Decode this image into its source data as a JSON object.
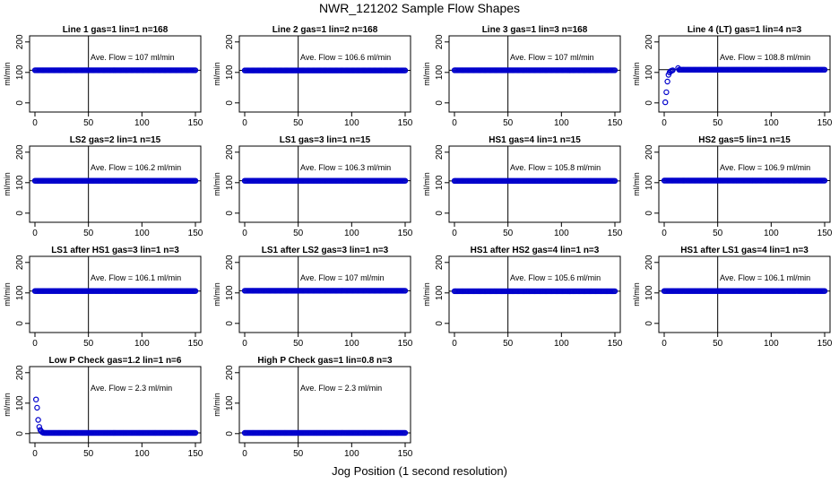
{
  "figure": {
    "title": "NWR_121202  Sample Flow Shapes",
    "xlabel": "Jog Position (1 second resolution)",
    "colors": {
      "points": "#0000cc",
      "axis": "#000000",
      "reference_line": "#000000"
    }
  },
  "chart_data": [
    {
      "type": "scatter",
      "title": "Line 1 gas=1 lin=1 n=168",
      "ylabel": "ml/min",
      "annotation": "Ave. Flow =  107  ml/min",
      "xlim": [
        0,
        150
      ],
      "ylim": [
        -30,
        220
      ],
      "xticks": [
        0,
        50,
        100,
        150
      ],
      "yticks": [
        0,
        100,
        200
      ],
      "hline": 107,
      "vline": 50,
      "shape": "flat",
      "level": 107,
      "x_range": [
        0,
        150
      ]
    },
    {
      "type": "scatter",
      "title": "Line 2 gas=1 lin=2 n=168",
      "ylabel": "ml/min",
      "annotation": "Ave. Flow =  106.6  ml/min",
      "xlim": [
        0,
        150
      ],
      "ylim": [
        -30,
        220
      ],
      "xticks": [
        0,
        50,
        100,
        150
      ],
      "yticks": [
        0,
        100,
        200
      ],
      "hline": 106.6,
      "vline": 50,
      "shape": "flat",
      "level": 106.6,
      "x_range": [
        0,
        150
      ]
    },
    {
      "type": "scatter",
      "title": "Line 3 gas=1 lin=3 n=168",
      "ylabel": "ml/min",
      "annotation": "Ave. Flow =  107  ml/min",
      "xlim": [
        0,
        150
      ],
      "ylim": [
        -30,
        220
      ],
      "xticks": [
        0,
        50,
        100,
        150
      ],
      "yticks": [
        0,
        100,
        200
      ],
      "hline": 107,
      "vline": 50,
      "shape": "flat",
      "level": 107,
      "x_range": [
        0,
        150
      ]
    },
    {
      "type": "scatter",
      "title": "Line 4 (LT) gas=1 lin=4 n=3",
      "ylabel": "ml/min",
      "annotation": "Ave. Flow =  108.8  ml/min",
      "xlim": [
        0,
        150
      ],
      "ylim": [
        -30,
        220
      ],
      "xticks": [
        0,
        50,
        100,
        150
      ],
      "yticks": [
        0,
        100,
        200
      ],
      "hline": 108.8,
      "vline": 50,
      "shape": "rise",
      "level": 108.8,
      "x_range": [
        0,
        150
      ],
      "start_points": [
        {
          "x": 1,
          "y": 2
        },
        {
          "x": 2,
          "y": 35
        },
        {
          "x": 3,
          "y": 70
        },
        {
          "x": 4,
          "y": 92
        },
        {
          "x": 5,
          "y": 100
        },
        {
          "x": 6,
          "y": 104
        },
        {
          "x": 7,
          "y": 106
        },
        {
          "x": 8,
          "y": 107
        },
        {
          "x": 13,
          "y": 114
        }
      ]
    },
    {
      "type": "scatter",
      "title": "LS2 gas=2 lin=1 n=15",
      "ylabel": "ml/min",
      "annotation": "Ave. Flow =  106.2  ml/min",
      "xlim": [
        0,
        150
      ],
      "ylim": [
        -30,
        220
      ],
      "xticks": [
        0,
        50,
        100,
        150
      ],
      "yticks": [
        0,
        100,
        200
      ],
      "hline": 106.2,
      "vline": 50,
      "shape": "flat",
      "level": 106.2,
      "x_range": [
        0,
        150
      ]
    },
    {
      "type": "scatter",
      "title": "LS1 gas=3 lin=1 n=15",
      "ylabel": "ml/min",
      "annotation": "Ave. Flow =  106.3  ml/min",
      "xlim": [
        0,
        150
      ],
      "ylim": [
        -30,
        220
      ],
      "xticks": [
        0,
        50,
        100,
        150
      ],
      "yticks": [
        0,
        100,
        200
      ],
      "hline": 106.3,
      "vline": 50,
      "shape": "flat",
      "level": 106.3,
      "x_range": [
        0,
        150
      ]
    },
    {
      "type": "scatter",
      "title": "HS1 gas=4 lin=1 n=15",
      "ylabel": "ml/min",
      "annotation": "Ave. Flow =  105.8  ml/min",
      "xlim": [
        0,
        150
      ],
      "ylim": [
        -30,
        220
      ],
      "xticks": [
        0,
        50,
        100,
        150
      ],
      "yticks": [
        0,
        100,
        200
      ],
      "hline": 105.8,
      "vline": 50,
      "shape": "flat",
      "level": 105.8,
      "x_range": [
        0,
        150
      ]
    },
    {
      "type": "scatter",
      "title": "HS2 gas=5 lin=1 n=15",
      "ylabel": "ml/min",
      "annotation": "Ave. Flow =  106.9  ml/min",
      "xlim": [
        0,
        150
      ],
      "ylim": [
        -30,
        220
      ],
      "xticks": [
        0,
        50,
        100,
        150
      ],
      "yticks": [
        0,
        100,
        200
      ],
      "hline": 106.9,
      "vline": 50,
      "shape": "flat",
      "level": 106.9,
      "x_range": [
        0,
        150
      ]
    },
    {
      "type": "scatter",
      "title": "LS1 after HS1 gas=3 lin=1 n=3",
      "ylabel": "ml/min",
      "annotation": "Ave. Flow =  106.1  ml/min",
      "xlim": [
        0,
        150
      ],
      "ylim": [
        -30,
        220
      ],
      "xticks": [
        0,
        50,
        100,
        150
      ],
      "yticks": [
        0,
        100,
        200
      ],
      "hline": 106.1,
      "vline": 50,
      "shape": "flat",
      "level": 106.1,
      "x_range": [
        0,
        150
      ]
    },
    {
      "type": "scatter",
      "title": "LS1 after LS2 gas=3 lin=1 n=3",
      "ylabel": "ml/min",
      "annotation": "Ave. Flow =  107  ml/min",
      "xlim": [
        0,
        150
      ],
      "ylim": [
        -30,
        220
      ],
      "xticks": [
        0,
        50,
        100,
        150
      ],
      "yticks": [
        0,
        100,
        200
      ],
      "hline": 107,
      "vline": 50,
      "shape": "flat",
      "level": 107,
      "x_range": [
        0,
        150
      ]
    },
    {
      "type": "scatter",
      "title": "HS1 after HS2 gas=4 lin=1 n=3",
      "ylabel": "ml/min",
      "annotation": "Ave. Flow =  105.6  ml/min",
      "xlim": [
        0,
        150
      ],
      "ylim": [
        -30,
        220
      ],
      "xticks": [
        0,
        50,
        100,
        150
      ],
      "yticks": [
        0,
        100,
        200
      ],
      "hline": 105.6,
      "vline": 50,
      "shape": "flat",
      "level": 105.6,
      "x_range": [
        0,
        150
      ]
    },
    {
      "type": "scatter",
      "title": "HS1 after LS1 gas=4 lin=1 n=3",
      "ylabel": "ml/min",
      "annotation": "Ave. Flow =  106.1  ml/min",
      "xlim": [
        0,
        150
      ],
      "ylim": [
        -30,
        220
      ],
      "xticks": [
        0,
        50,
        100,
        150
      ],
      "yticks": [
        0,
        100,
        200
      ],
      "hline": 106.1,
      "vline": 50,
      "shape": "flat",
      "level": 106.1,
      "x_range": [
        0,
        150
      ]
    },
    {
      "type": "scatter",
      "title": "Low P Check gas=1.2 lin=1 n=6",
      "ylabel": "ml/min",
      "annotation": "Ave. Flow =  2.3  ml/min",
      "xlim": [
        0,
        150
      ],
      "ylim": [
        -30,
        220
      ],
      "xticks": [
        0,
        50,
        100,
        150
      ],
      "yticks": [
        0,
        100,
        200
      ],
      "hline": 2.3,
      "vline": 50,
      "shape": "decay",
      "level": 2.3,
      "x_range": [
        0,
        150
      ],
      "start_points": [
        {
          "x": 1,
          "y": 112
        },
        {
          "x": 2,
          "y": 85
        },
        {
          "x": 3,
          "y": 45
        },
        {
          "x": 4,
          "y": 22
        },
        {
          "x": 5,
          "y": 12
        },
        {
          "x": 6,
          "y": 7
        },
        {
          "x": 7,
          "y": 4
        },
        {
          "x": 8,
          "y": 3
        }
      ]
    },
    {
      "type": "scatter",
      "title": "High P Check gas=1 lin=0.8 n=3",
      "ylabel": "ml/min",
      "annotation": "Ave. Flow =  2.3  ml/min",
      "xlim": [
        0,
        150
      ],
      "ylim": [
        -30,
        220
      ],
      "xticks": [
        0,
        50,
        100,
        150
      ],
      "yticks": [
        0,
        100,
        200
      ],
      "hline": 2.3,
      "vline": 50,
      "shape": "flat",
      "level": 2.3,
      "x_range": [
        0,
        150
      ]
    }
  ]
}
